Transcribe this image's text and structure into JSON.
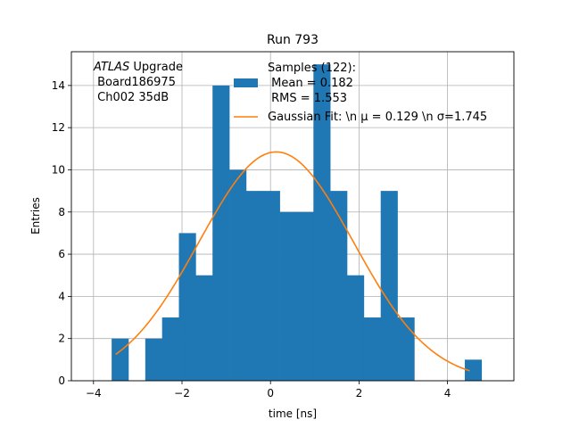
{
  "chart_data": {
    "type": "bar",
    "title": "Run 793",
    "xlabel": "time [ns]",
    "ylabel": "Entries",
    "xlim": [
      -4.5,
      5.5
    ],
    "ylim": [
      0,
      15.6
    ],
    "xticks": [
      -4,
      -2,
      0,
      2,
      4
    ],
    "yticks": [
      0,
      2,
      4,
      6,
      8,
      10,
      12,
      14
    ],
    "grid": true,
    "bin_width": 0.38,
    "bins": [
      {
        "left": -3.59,
        "value": 2
      },
      {
        "left": -3.21,
        "value": 0
      },
      {
        "left": -2.83,
        "value": 2
      },
      {
        "left": -2.45,
        "value": 3
      },
      {
        "left": -2.07,
        "value": 7
      },
      {
        "left": -1.69,
        "value": 5
      },
      {
        "left": -1.31,
        "value": 14
      },
      {
        "left": -0.93,
        "value": 10
      },
      {
        "left": -0.55,
        "value": 9
      },
      {
        "left": -0.17,
        "value": 9
      },
      {
        "left": 0.21,
        "value": 8
      },
      {
        "left": 0.59,
        "value": 8
      },
      {
        "left": 0.97,
        "value": 15
      },
      {
        "left": 1.35,
        "value": 9
      },
      {
        "left": 1.73,
        "value": 5
      },
      {
        "left": 2.11,
        "value": 3
      },
      {
        "left": 2.49,
        "value": 9
      },
      {
        "left": 2.87,
        "value": 3
      },
      {
        "left": 3.25,
        "value": 0
      },
      {
        "left": 3.63,
        "value": 0
      },
      {
        "left": 4.01,
        "value": 0
      },
      {
        "left": 4.39,
        "value": 1
      }
    ],
    "fit": {
      "mu": 0.129,
      "sigma": 1.745,
      "amplitude": 10.85,
      "x_range": [
        -3.5,
        4.5
      ]
    },
    "legend": {
      "placement": "top-right",
      "samples_label": "Samples (122):\n Mean = 0.182\n RMS = 1.553",
      "fit_label": "Gaussian Fit: \\n μ = 0.129 \\n σ=1.745"
    },
    "annotation": {
      "atlas": "ATLAS",
      "upgrade": " Upgrade",
      "board": " Board186975",
      "channel": " Ch002 35dB"
    },
    "colors": {
      "bars": "#1f77b4",
      "fit": "#ff7f0e",
      "grid": "#b0b0b0"
    }
  }
}
